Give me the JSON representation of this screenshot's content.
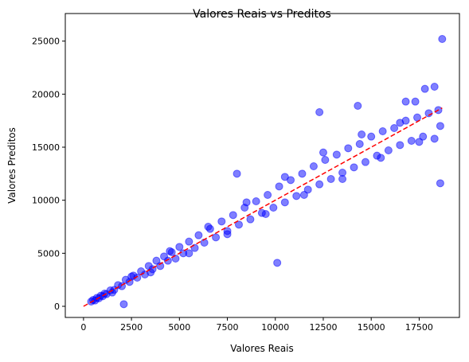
{
  "chart_data": {
    "type": "scatter",
    "title": "Valores Reais vs Preditos",
    "xlabel": "Valores Reais",
    "ylabel": "Valores Preditos",
    "series": [
      {
        "color": "#0000ff",
        "alpha": 0.5,
        "x": [
          400,
          500,
          600,
          700,
          800,
          900,
          1000,
          1100,
          1200,
          1400,
          1600,
          1800,
          2000,
          2200,
          2400,
          2600,
          2800,
          3000,
          3200,
          3400,
          3600,
          3800,
          4000,
          4200,
          4400,
          4600,
          4800,
          5000,
          5200,
          5500,
          5800,
          6000,
          6300,
          6600,
          6900,
          7200,
          7500,
          7800,
          8100,
          8400,
          8700,
          9000,
          9300,
          9600,
          9900,
          10200,
          10500,
          10800,
          11100,
          11400,
          11700,
          12000,
          12300,
          12600,
          12900,
          13200,
          13500,
          13800,
          14100,
          14400,
          14700,
          15000,
          15300,
          15600,
          15900,
          16200,
          16500,
          16800,
          17100,
          17400,
          17700,
          18000,
          18300,
          18600,
          1500,
          2500,
          3500,
          4500,
          5500,
          6500,
          7500,
          8500,
          9500,
          10500,
          11500,
          12500,
          13500,
          14500,
          15500,
          16500,
          17500,
          18500,
          18700,
          18600,
          10100,
          2100,
          14300,
          18300,
          17800,
          12300,
          8000,
          16800,
          17300
        ],
        "y": [
          450,
          600,
          550,
          800,
          750,
          1000,
          950,
          1200,
          1150,
          1500,
          1550,
          2000,
          1900,
          2500,
          2300,
          2900,
          2700,
          3300,
          3000,
          3800,
          3500,
          4300,
          3800,
          4700,
          4300,
          5100,
          4500,
          5600,
          5000,
          6100,
          5500,
          6700,
          6000,
          7300,
          6500,
          8000,
          7100,
          8600,
          7700,
          9300,
          8200,
          9900,
          8800,
          10500,
          9300,
          11300,
          9800,
          11900,
          10400,
          12500,
          11000,
          13200,
          11500,
          13800,
          12000,
          14300,
          12600,
          14900,
          13100,
          15300,
          13600,
          16000,
          14200,
          16500,
          14700,
          16800,
          15200,
          17500,
          15600,
          17800,
          16000,
          18200,
          15800,
          17000,
          1300,
          2800,
          3200,
          5200,
          5000,
          7500,
          6800,
          9800,
          8700,
          12200,
          10500,
          14500,
          12000,
          16200,
          14000,
          17300,
          15500,
          18500,
          25200,
          11600,
          4100,
          200,
          18900,
          20700,
          20500,
          18300,
          12500,
          19300,
          19300
        ]
      }
    ],
    "reference_line": {
      "x": [
        0,
        18700
      ],
      "y": [
        0,
        18700
      ],
      "color": "#ff0000",
      "style": "dashed"
    },
    "xlim": [
      -950,
      19600
    ],
    "ylim": [
      -1050,
      27600
    ],
    "xticks": [
      0,
      2500,
      5000,
      7500,
      10000,
      12500,
      15000,
      17500
    ],
    "yticks": [
      0,
      5000,
      10000,
      15000,
      20000,
      25000
    ]
  }
}
